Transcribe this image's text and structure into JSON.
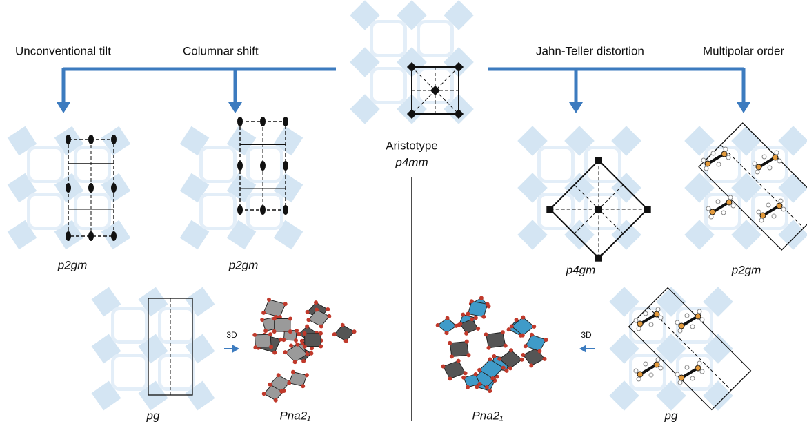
{
  "aristotype": {
    "name": "Aristotype",
    "group": "p4mm"
  },
  "branches": [
    {
      "label": "Unconventional tilt",
      "group": "p2gm"
    },
    {
      "label": "Columnar shift",
      "group": "p2gm"
    },
    {
      "label": "Jahn-Teller distortion",
      "group": "p4gm"
    },
    {
      "label": "Multipolar order",
      "group": "p2gm"
    }
  ],
  "bottom_left": {
    "group": "pg",
    "arrow": "3D",
    "structure": "Pna2₁"
  },
  "bottom_right": {
    "group": "pg",
    "arrow": "3D",
    "structure": "Pna2₁"
  }
}
